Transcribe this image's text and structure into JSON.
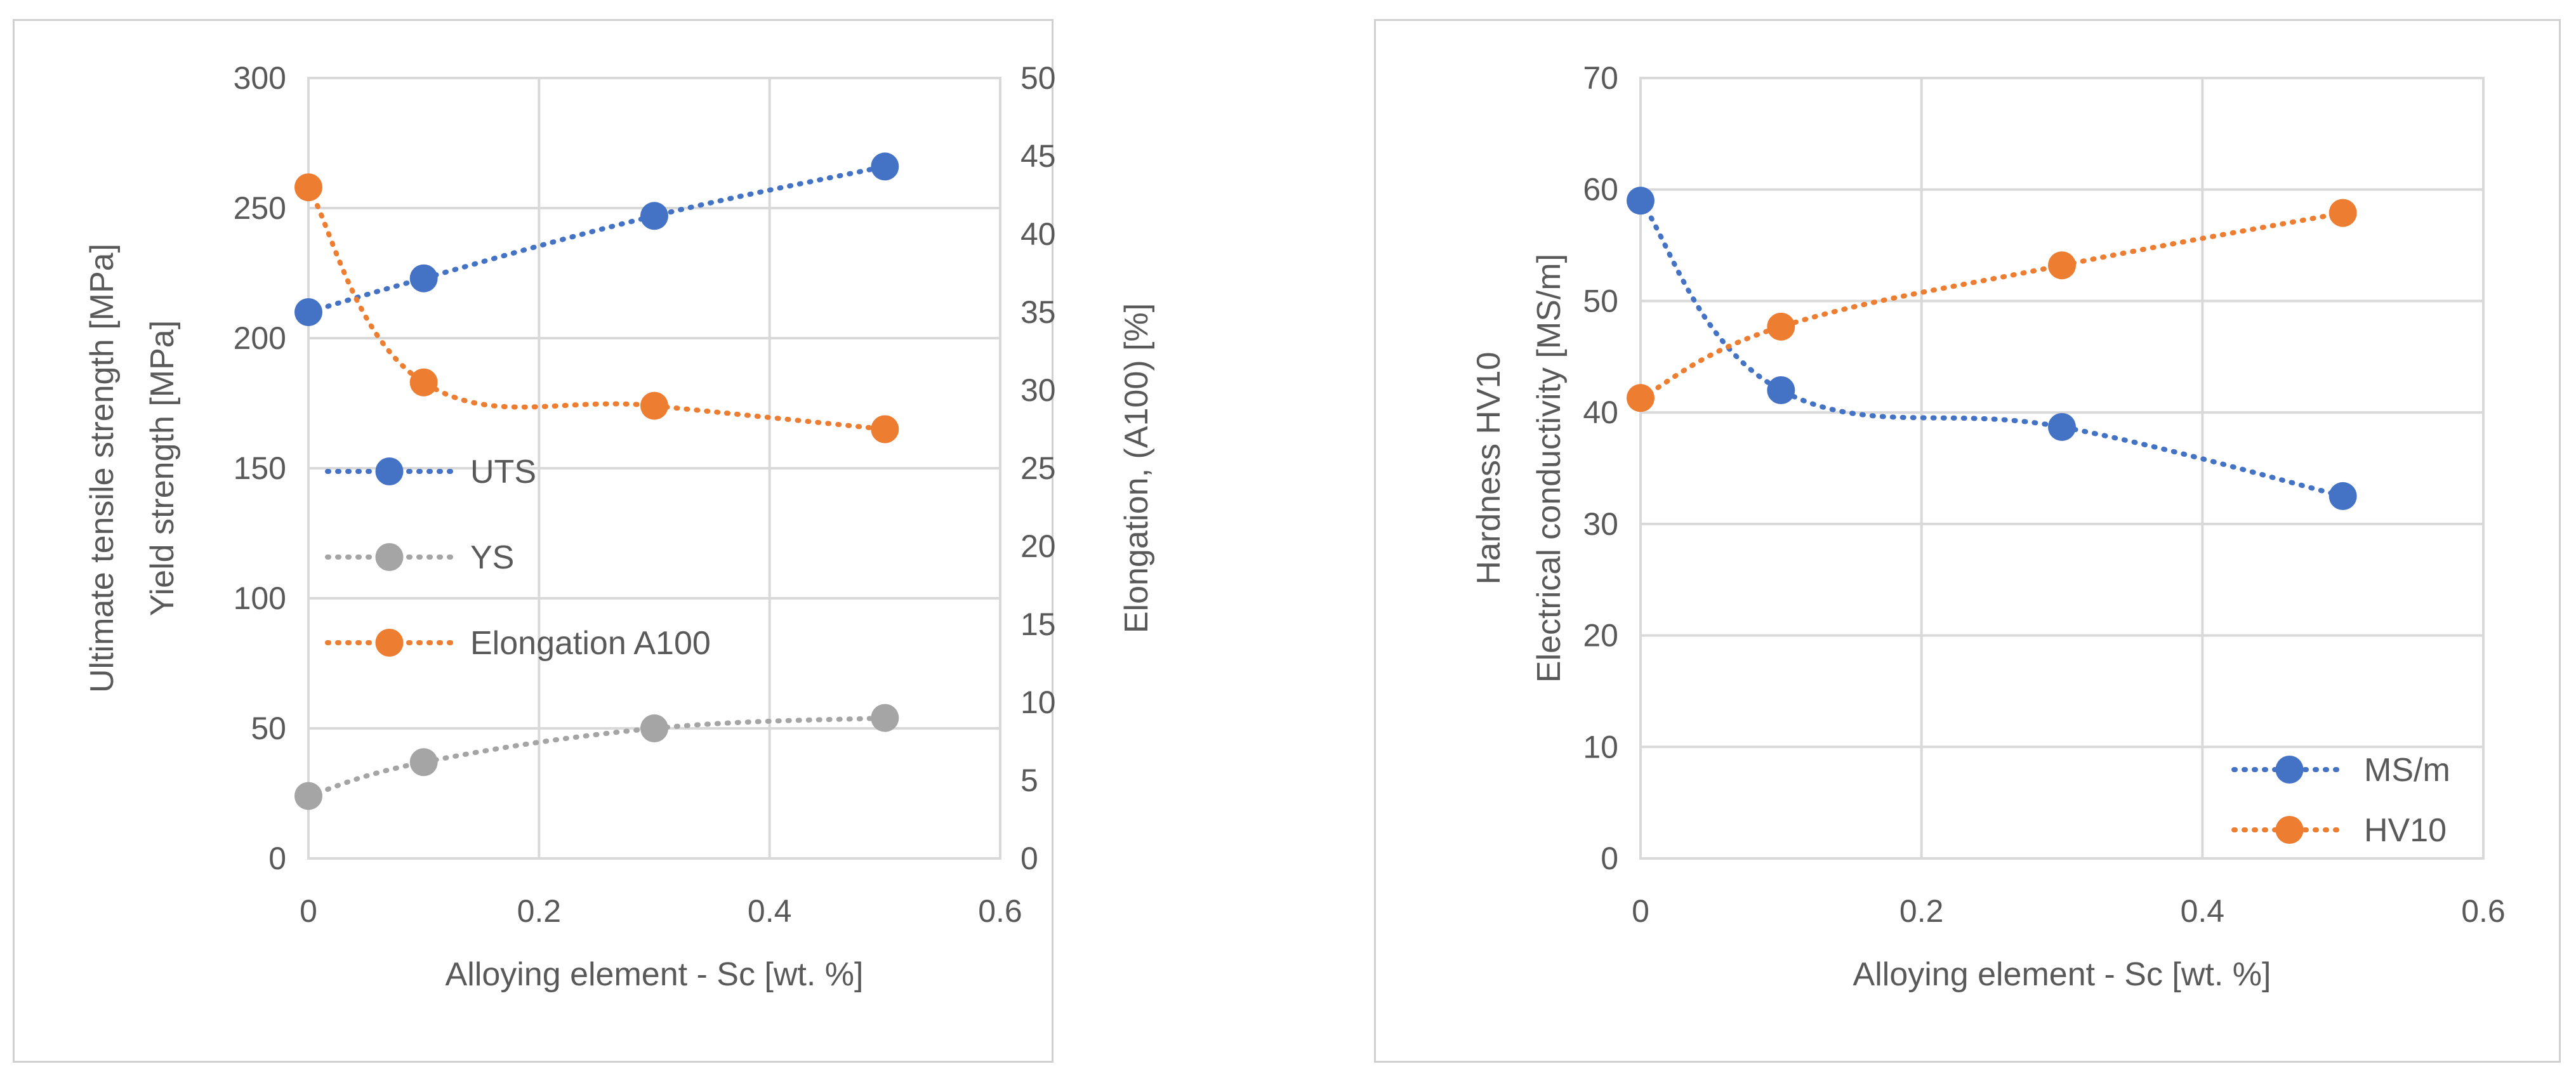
{
  "chart_data": [
    {
      "type": "line",
      "title": "",
      "xlabel": "Alloying element - Sc [wt. %]",
      "ylabel_lines": [
        "Ultimate tensile strength [MPa]",
        "Yield strength [MPa]"
      ],
      "y2label": "Elongation, (A100) [%]",
      "xlim": [
        0,
        0.6
      ],
      "xticks": [
        0,
        0.2,
        0.4,
        0.6
      ],
      "ylim": [
        0,
        300
      ],
      "yticks": [
        0,
        50,
        100,
        150,
        200,
        250,
        300
      ],
      "y2lim": [
        0,
        50
      ],
      "y2ticks": [
        0,
        5,
        10,
        15,
        20,
        25,
        30,
        35,
        40,
        45,
        50
      ],
      "grid": true,
      "legend_position": "left-middle",
      "series": [
        {
          "name": "UTS",
          "axis": "left",
          "color": "#4472c4",
          "x": [
            0,
            0.1,
            0.3,
            0.5
          ],
          "values": [
            210,
            223,
            247,
            266
          ]
        },
        {
          "name": "YS",
          "axis": "left",
          "color": "#a5a5a5",
          "x": [
            0,
            0.1,
            0.3,
            0.5
          ],
          "values": [
            24,
            37,
            50,
            54
          ]
        },
        {
          "name": "Elongation A100",
          "axis": "right",
          "color": "#ed7d31",
          "x": [
            0,
            0.1,
            0.3,
            0.5
          ],
          "values": [
            43,
            30.5,
            29,
            27.5
          ]
        }
      ]
    },
    {
      "type": "line",
      "title": "",
      "xlabel": "Alloying element - Sc [wt. %]",
      "ylabel_lines": [
        "Hardness HV10",
        "Electrical conductivity [MS/m]"
      ],
      "xlim": [
        0,
        0.6
      ],
      "xticks": [
        0,
        0.2,
        0.4,
        0.6
      ],
      "ylim": [
        0,
        70
      ],
      "yticks": [
        0,
        10,
        20,
        30,
        40,
        50,
        60,
        70
      ],
      "grid": true,
      "legend_position": "bottom-right",
      "series": [
        {
          "name": "MS/m",
          "axis": "left",
          "color": "#4472c4",
          "x": [
            0,
            0.1,
            0.3,
            0.5
          ],
          "values": [
            59,
            42,
            38.7,
            32.5
          ]
        },
        {
          "name": "HV10",
          "axis": "left",
          "color": "#ed7d31",
          "x": [
            0,
            0.1,
            0.3,
            0.5
          ],
          "values": [
            41.3,
            47.7,
            53.2,
            57.9
          ]
        }
      ]
    }
  ]
}
